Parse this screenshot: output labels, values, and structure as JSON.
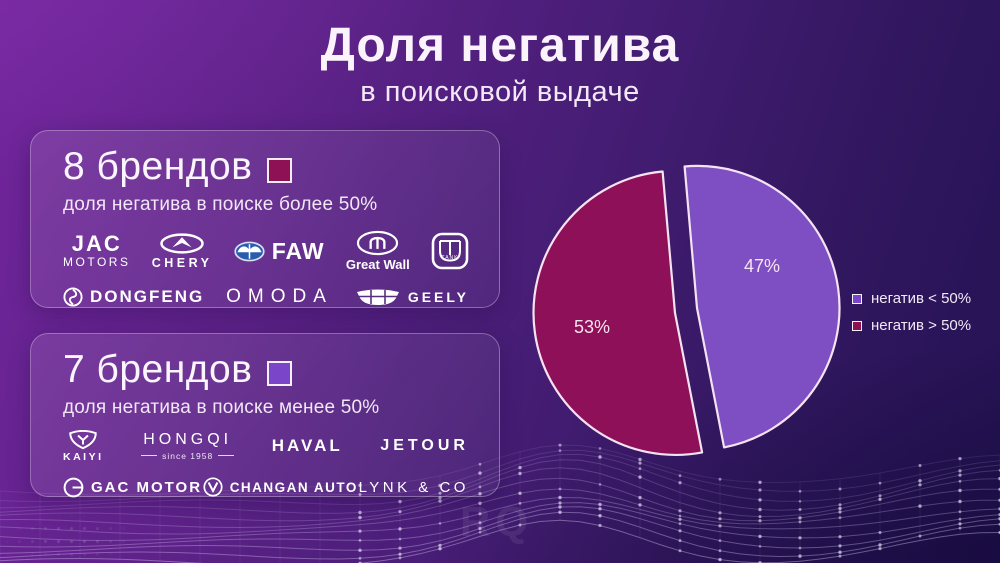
{
  "header": {
    "title": "Доля негатива",
    "subtitle": "в поисковой выдаче"
  },
  "cards": [
    {
      "count_label": "8 брендов",
      "subtitle": "доля негатива в поиске более 50%",
      "swatch_color": "#8e1156",
      "rows": [
        [
          {
            "name": "jac-motors",
            "line1": "JAC",
            "line2": "MOTORS"
          },
          {
            "name": "chery",
            "label": "CHERY"
          },
          {
            "name": "faw",
            "label": "FAW"
          },
          {
            "name": "great-wall",
            "label": "Great Wall"
          },
          {
            "name": "tank",
            "label": "TANK"
          }
        ],
        [
          {
            "name": "dongfeng",
            "label": "DONGFENG"
          },
          {
            "name": "omoda",
            "label": "OMODA"
          },
          {
            "name": "geely",
            "label": "GEELY"
          }
        ]
      ]
    },
    {
      "count_label": "7 брендов",
      "subtitle": "доля негатива в поиске менее 50%",
      "swatch_color": "#7a45c9",
      "rows": [
        [
          {
            "name": "kaiyi",
            "label": "KAIYI"
          },
          {
            "name": "hongqi",
            "label": "HONGQI",
            "sub": "since 1958"
          },
          {
            "name": "haval",
            "label": "HAVAL"
          },
          {
            "name": "jetour",
            "label": "JETOUR"
          }
        ],
        [
          {
            "name": "gac-motor",
            "label": "GAC MOTOR"
          },
          {
            "name": "changan-auto",
            "label": "CHANGAN AUTO"
          },
          {
            "name": "lynk-co",
            "label": "LYNK & CO"
          }
        ]
      ]
    }
  ],
  "chart_data": {
    "type": "pie",
    "title": "Доля негатива в поисковой выдаче",
    "slices": [
      {
        "label": "негатив > 50%",
        "value": 53,
        "display": "53%",
        "color": "#8e1058"
      },
      {
        "label": "негатив < 50%",
        "value": 47,
        "display": "47%",
        "color": "#7d4fc3"
      }
    ],
    "legend": [
      {
        "label": "негатив < 50%",
        "color": "#7a45c9"
      },
      {
        "label": "негатив > 50%",
        "color": "#8e1156"
      }
    ],
    "legend_position": "right",
    "exploded_slice": "47%",
    "start_angle_deg": -5,
    "outline_color": "#f6e3f2"
  },
  "watermark": "RQ"
}
